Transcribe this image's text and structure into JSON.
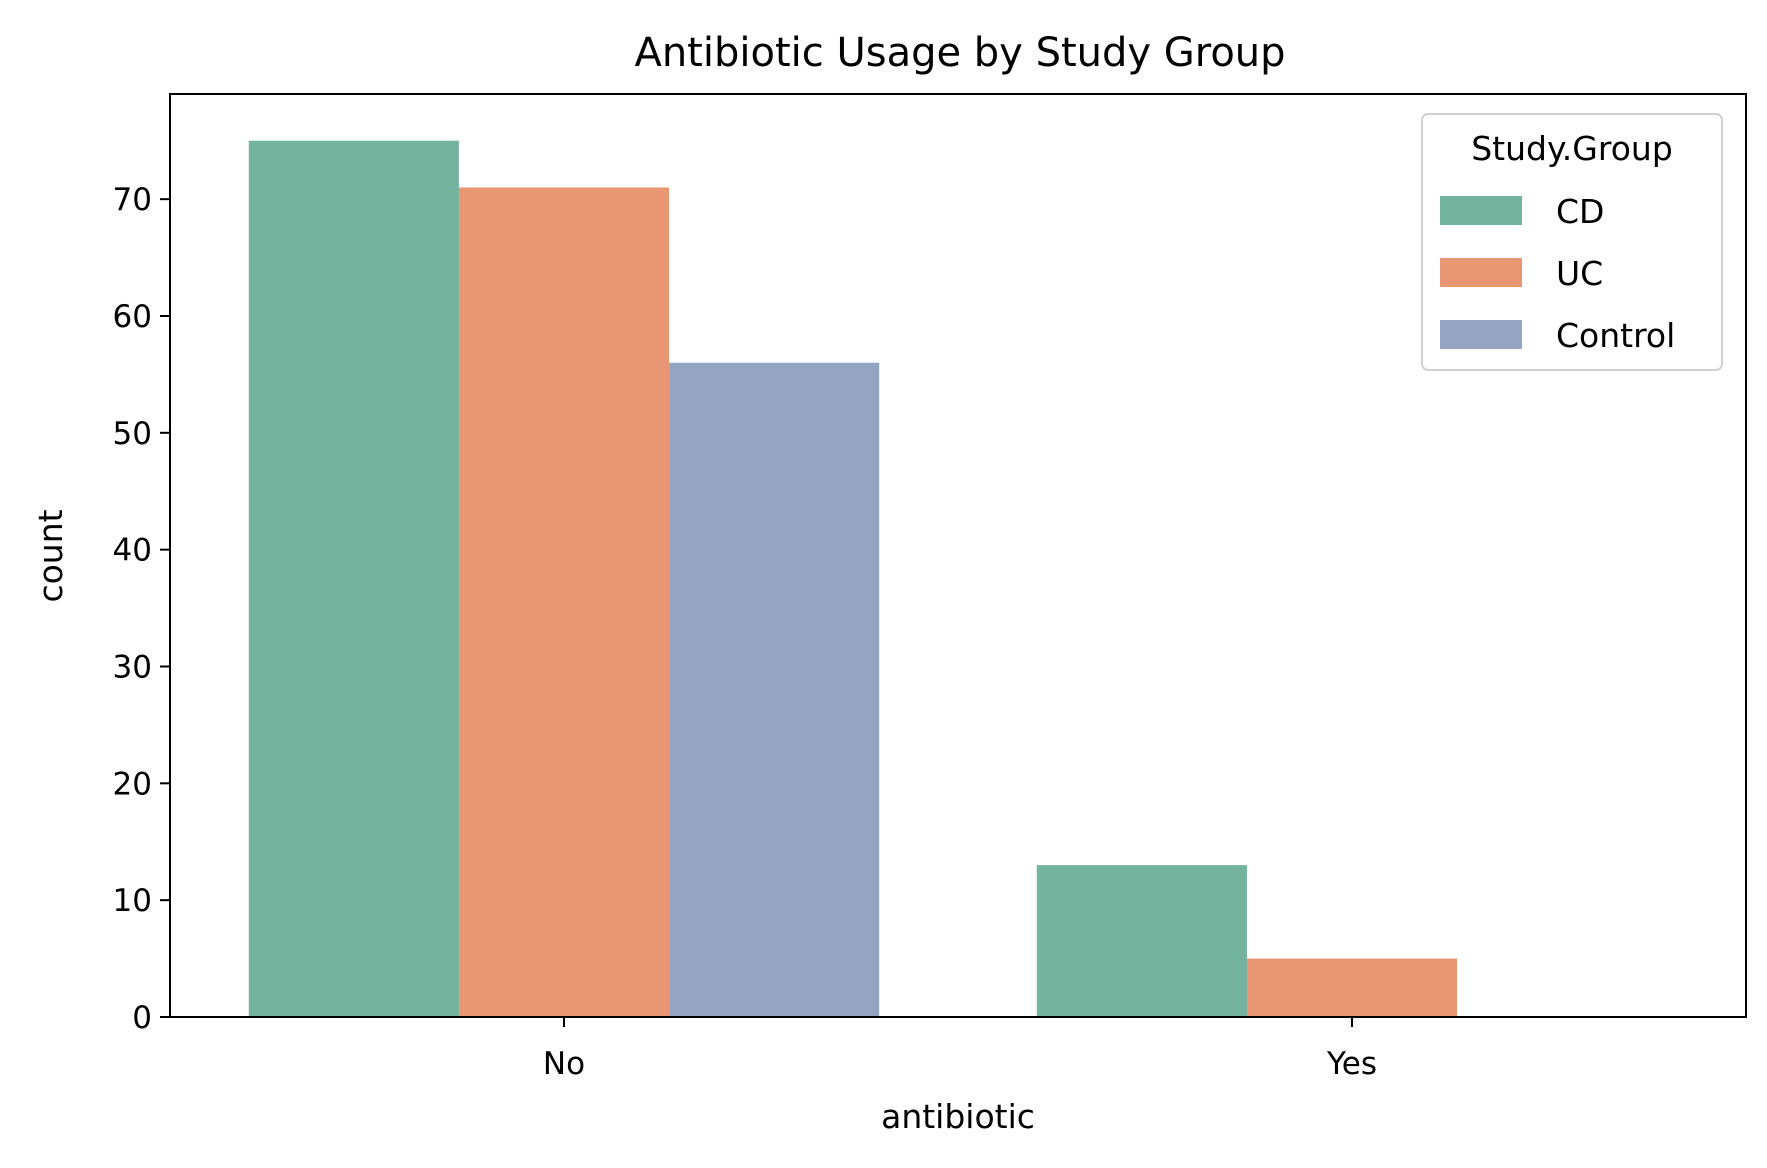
{
  "chart_data": {
    "type": "bar",
    "title": "Antibiotic Usage by Study Group",
    "xlabel": "antibiotic",
    "ylabel": "count",
    "categories": [
      "No",
      "Yes"
    ],
    "series": [
      {
        "name": "CD",
        "values": [
          75,
          13
        ],
        "color": "#74b49f"
      },
      {
        "name": "UC",
        "values": [
          71,
          5
        ],
        "color": "#e89674"
      },
      {
        "name": "Control",
        "values": [
          56,
          0
        ],
        "color": "#95a4c2"
      }
    ],
    "ylim": [
      0,
      79
    ],
    "yticks": [
      0,
      10,
      20,
      30,
      40,
      50,
      60,
      70
    ],
    "grid": false,
    "legend": {
      "title": "Study.Group",
      "position": "top-right"
    }
  }
}
